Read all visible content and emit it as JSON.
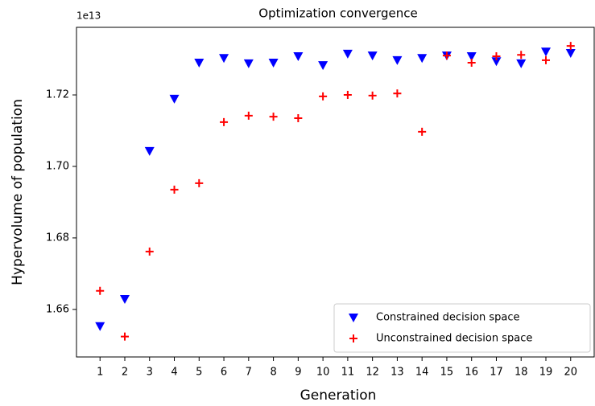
{
  "chart_data": {
    "type": "scatter",
    "title": "Optimization convergence",
    "x_label": "Generation",
    "y_label": "Hypervolume of population",
    "y_offset_label": "1e13",
    "x": [
      1,
      2,
      3,
      4,
      5,
      6,
      7,
      8,
      9,
      10,
      11,
      12,
      13,
      14,
      15,
      16,
      17,
      18,
      19,
      20
    ],
    "series": [
      {
        "name": "Constrained decision space",
        "color": "#0000ff",
        "marker": "triangle-down",
        "values": [
          1.6553,
          1.6629,
          1.7043,
          1.7189,
          1.729,
          1.7303,
          1.7288,
          1.729,
          1.7308,
          1.7283,
          1.7315,
          1.731,
          1.7297,
          1.7303,
          1.731,
          1.7308,
          1.7294,
          1.7288,
          1.7321,
          1.7317
        ]
      },
      {
        "name": "Unconstrained decision space",
        "color": "#ff0000",
        "marker": "plus",
        "values": [
          1.6652,
          1.6524,
          1.6762,
          1.6935,
          1.6953,
          1.7124,
          1.7142,
          1.7139,
          1.7135,
          1.7196,
          1.72,
          1.7198,
          1.7204,
          1.7097,
          1.731,
          1.729,
          1.7308,
          1.7312,
          1.7297,
          1.7337
        ]
      }
    ],
    "xlim": [
      0.05,
      20.95
    ],
    "xticks": [
      1,
      2,
      3,
      4,
      5,
      6,
      7,
      8,
      9,
      10,
      11,
      12,
      13,
      14,
      15,
      16,
      17,
      18,
      19,
      20
    ],
    "ylim": [
      1.6467,
      1.7389
    ],
    "yticks": [
      1.66,
      1.68,
      {
        "value": 1.7,
        "label": "1.70"
      },
      1.72
    ],
    "legend": "lower right"
  }
}
